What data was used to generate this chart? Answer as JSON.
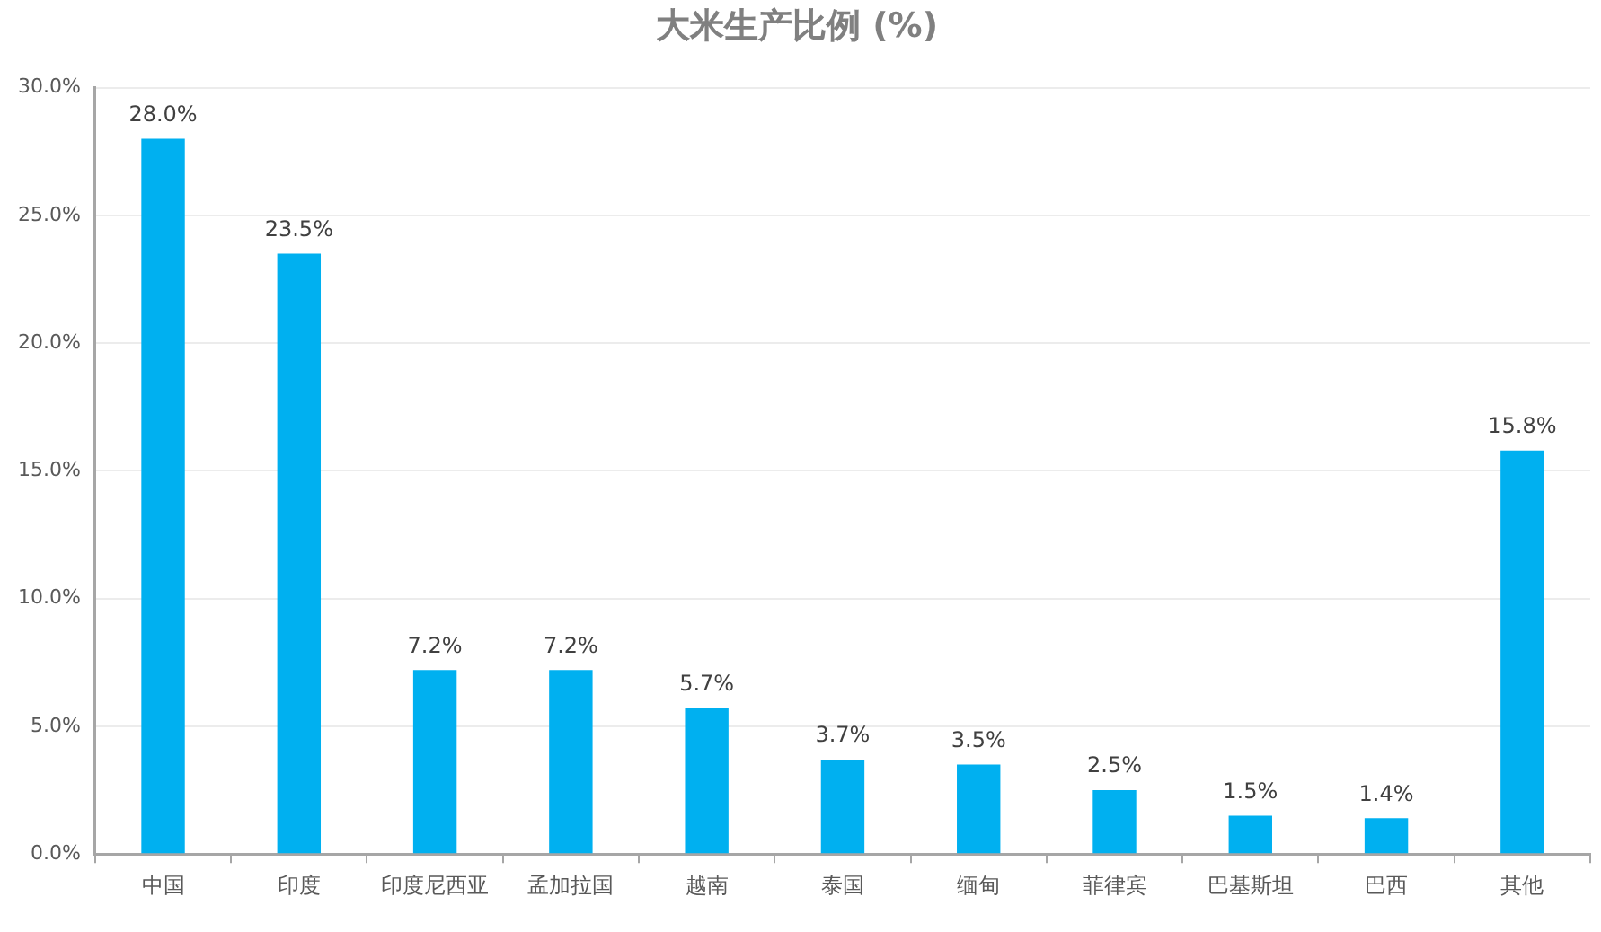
{
  "chart_data": {
    "type": "bar",
    "title": "大米生产比例 (%)",
    "categories": [
      "中国",
      "印度",
      "印度尼西亚",
      "孟加拉国",
      "越南",
      "泰国",
      "缅甸",
      "菲律宾",
      "巴基斯坦",
      "巴西",
      "其他"
    ],
    "values": [
      28.0,
      23.5,
      7.2,
      7.2,
      5.7,
      3.7,
      3.5,
      2.5,
      1.5,
      1.4,
      15.8
    ],
    "value_labels": [
      "28.0%",
      "23.5%",
      "7.2%",
      "7.2%",
      "5.7%",
      "3.7%",
      "3.5%",
      "2.5%",
      "1.5%",
      "1.4%",
      "15.8%"
    ],
    "color": "#00b0f0",
    "ylim": [
      0,
      30
    ],
    "yticks": [
      {
        "value": 0,
        "label": "0.0%"
      },
      {
        "value": 5,
        "label": "5.0%"
      },
      {
        "value": 10,
        "label": "10.0%"
      },
      {
        "value": 15,
        "label": "15.0%"
      },
      {
        "value": 20,
        "label": "20.0%"
      },
      {
        "value": 25,
        "label": "25.0%"
      },
      {
        "value": 30,
        "label": "30.0%"
      }
    ],
    "grid": "y"
  }
}
